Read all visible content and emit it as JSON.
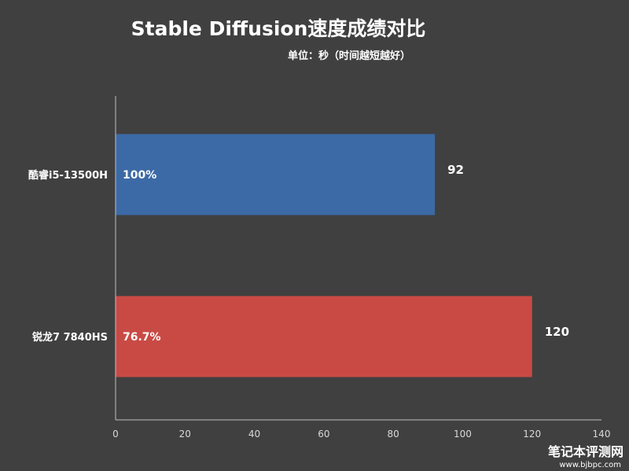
{
  "chart_data": {
    "type": "bar",
    "orientation": "horizontal",
    "title": "Stable Diffusion速度成绩对比",
    "subtitle": "单位：秒（时间越短越好）",
    "categories": [
      "酷睿i5-13500H",
      "锐龙7 7840HS"
    ],
    "values": [
      92,
      120
    ],
    "bar_labels": [
      "100%",
      "76.7%"
    ],
    "bar_colors": [
      "#3c6aa6",
      "#c94a45"
    ],
    "xlim": [
      0,
      140
    ],
    "xticks": [
      0,
      20,
      40,
      60,
      80,
      100,
      120,
      140
    ],
    "grid": false,
    "legend": "none"
  },
  "watermark": {
    "main": "笔记本评测网",
    "sub": "www.bjbpc.com"
  }
}
